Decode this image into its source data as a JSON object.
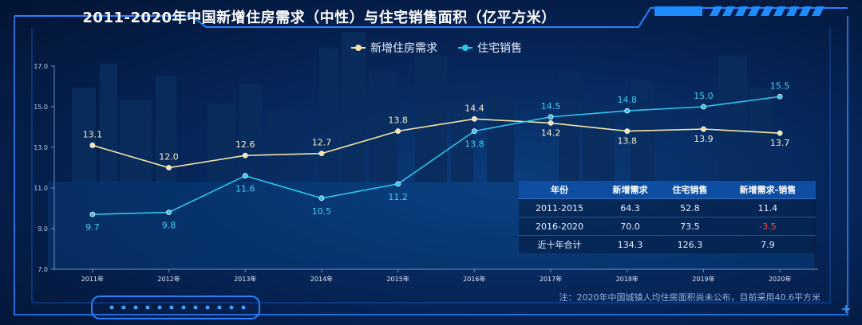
{
  "chart_data": {
    "type": "line",
    "title": "2011-2020年中国新增住房需求（中性）与住宅销售面积（亿平方米）",
    "categories": [
      "2011年",
      "2012年",
      "2013年",
      "2014年",
      "2015年",
      "2016年",
      "2017年",
      "2018年",
      "2019年",
      "2020年"
    ],
    "ylim": [
      7.0,
      17.0
    ],
    "yticks": [
      "17.0",
      "15.0",
      "13.0",
      "11.0",
      "9.0",
      "7.0"
    ],
    "legend_position": "top-center",
    "grid": true,
    "series": [
      {
        "name": "新增住房需求",
        "color": "#f2e2a6",
        "values": [
          13.1,
          12.0,
          12.6,
          12.7,
          13.8,
          14.4,
          14.2,
          13.8,
          13.9,
          13.7
        ],
        "labels": [
          "13.1",
          "12.0",
          "12.6",
          "12.7",
          "13.8",
          "14.4",
          "14.2",
          "13.8",
          "13.9",
          "13.7"
        ]
      },
      {
        "name": "住宅销售",
        "color": "#2bc6ee",
        "values": [
          9.7,
          9.8,
          11.6,
          10.5,
          11.2,
          13.8,
          14.5,
          14.8,
          15.0,
          15.5
        ],
        "labels": [
          "9.7",
          "9.8",
          "11.6",
          "10.5",
          "11.2",
          "13.8",
          "14.5",
          "14.8",
          "15.0",
          "15.5"
        ]
      }
    ]
  },
  "table": {
    "headers": [
      "年份",
      "新增需求",
      "住宅销售",
      "新增需求-销售"
    ],
    "rows": [
      [
        "2011-2015",
        "64.3",
        "52.8",
        "11.4"
      ],
      [
        "2016-2020",
        "70.0",
        "73.5",
        "-3.5"
      ],
      [
        "近十年合计",
        "134.3",
        "126.3",
        "7.9"
      ]
    ]
  },
  "note": "注：2020年中国城镇人均住房面积尚未公布，目前采用40.6平方米",
  "colors": {
    "accent": "#1e8cff",
    "frame": "#2a7fff",
    "negative": "#ff4a4a"
  }
}
